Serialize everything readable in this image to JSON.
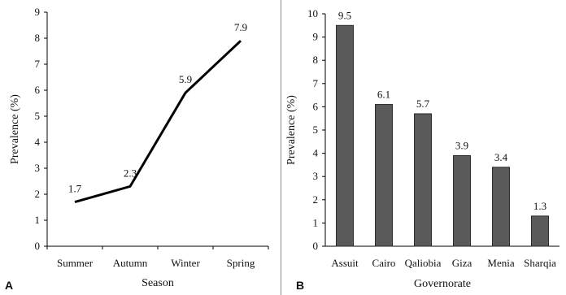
{
  "chart_data": [
    {
      "type": "line",
      "panel_label": "A",
      "categories": [
        "Summer",
        "Autumn",
        "Winter",
        "Spring"
      ],
      "values": [
        1.7,
        2.3,
        5.9,
        7.9
      ],
      "data_labels": [
        "1.7",
        "2.3",
        "5.9",
        "7.9"
      ],
      "xlabel": "Season",
      "ylabel": "Prevalence (%)",
      "ylim": [
        0,
        9
      ],
      "yticks": [
        "0",
        "1",
        "2",
        "3",
        "4",
        "5",
        "6",
        "7",
        "8",
        "9"
      ],
      "grid": false,
      "line_color": "#000000"
    },
    {
      "type": "bar",
      "panel_label": "B",
      "categories": [
        "Assuit",
        "Cairo",
        "Qaliobia",
        "Giza",
        "Menia",
        "Sharqia"
      ],
      "values": [
        9.5,
        6.1,
        5.7,
        3.9,
        3.4,
        1.3
      ],
      "data_labels": [
        "9.5",
        "6.1",
        "5.7",
        "3.9",
        "3.4",
        "1.3"
      ],
      "xlabel": "Governorate",
      "ylabel": "Prevalence (%)",
      "ylim": [
        0,
        10
      ],
      "yticks": [
        "0",
        "1",
        "2",
        "3",
        "4",
        "5",
        "6",
        "7",
        "8",
        "9",
        "10"
      ],
      "grid": false,
      "bar_color": "#5a5a5a"
    }
  ]
}
